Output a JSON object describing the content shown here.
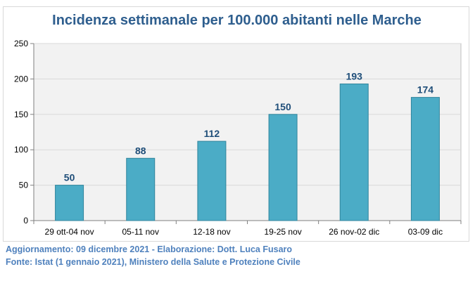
{
  "chart_data": {
    "type": "bar",
    "title": "Incidenza settimanale per 100.000 abitanti nelle Marche",
    "categories": [
      "29 ott-04 nov",
      "05-11 nov",
      "12-18 nov",
      "19-25 nov",
      "26 nov-02 dic",
      "03-09 dic"
    ],
    "values": [
      50,
      88,
      112,
      150,
      193,
      174
    ],
    "data_labels": [
      "50",
      "88",
      "112",
      "150",
      "193",
      "174"
    ],
    "yticks": [
      "0",
      "50",
      "100",
      "150",
      "200",
      "250"
    ],
    "ylim": [
      0,
      250
    ],
    "grid": true,
    "legend": "none",
    "colors": {
      "bar": "#4bacc6",
      "bar_border": "#31859c",
      "label": "#1f4e79",
      "plot_bg": "#f2f2f2",
      "grid": "#d9d9d9"
    }
  },
  "footer": {
    "line1": "Aggiornamento: 09 dicembre 2021 - Elaborazione: Dott. Luca Fusaro",
    "line2": "Fonte: Istat (1 gennaio 2021), Ministero della Salute e Protezione Civile"
  }
}
